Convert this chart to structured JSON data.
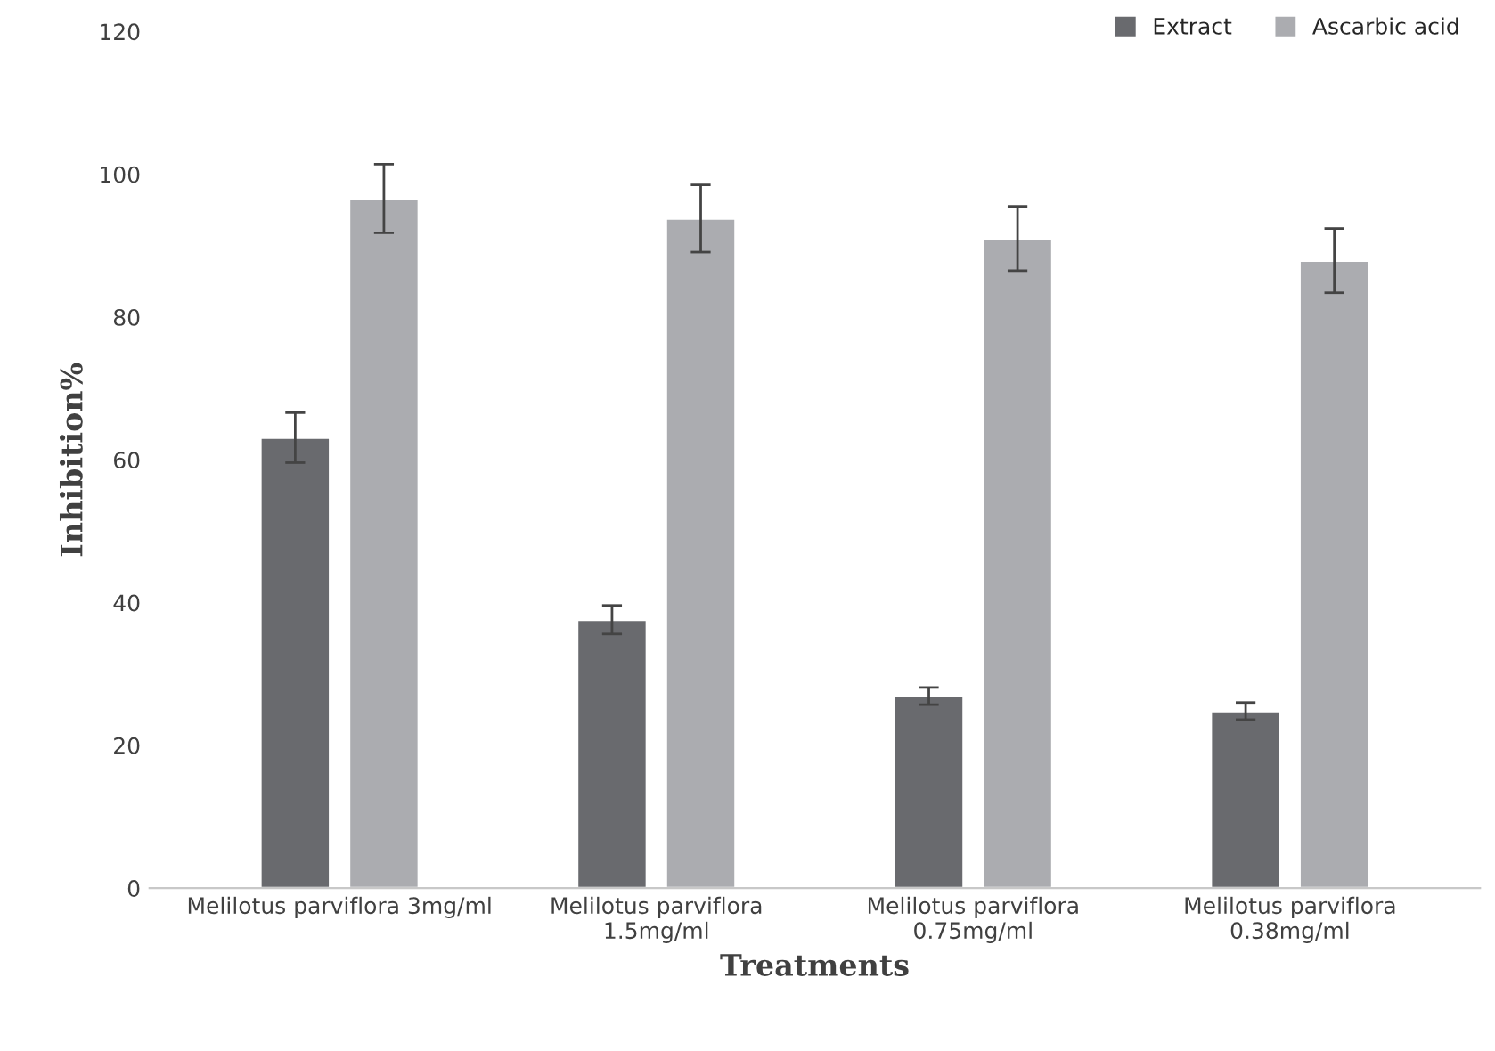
{
  "chart_data": {
    "type": "bar",
    "xlabel": "Treatments",
    "ylabel": "Inhibition%",
    "categories": [
      "Melilotus parviflora 3mg/ml",
      "Melilotus parviflora\n1.5mg/ml",
      "Melilotus parviflora\n0.75mg/ml",
      "Melilotus parviflora\n0.38mg/ml"
    ],
    "series": [
      {
        "name": "Extract",
        "color": "#696a6e",
        "values": [
          63.1,
          37.6,
          26.9,
          24.8
        ],
        "errors": [
          3.5,
          2,
          1.2,
          1.2
        ]
      },
      {
        "name": "Ascarbic acid",
        "color": "#abacb0",
        "values": [
          96.6,
          93.8,
          91.0,
          87.9
        ],
        "errors": [
          4.8,
          4.7,
          4.5,
          4.5
        ]
      }
    ],
    "ylim": [
      0,
      120
    ],
    "yticks": [
      0,
      20,
      40,
      60,
      80,
      100,
      120
    ],
    "grid": false,
    "legend": "top right"
  }
}
